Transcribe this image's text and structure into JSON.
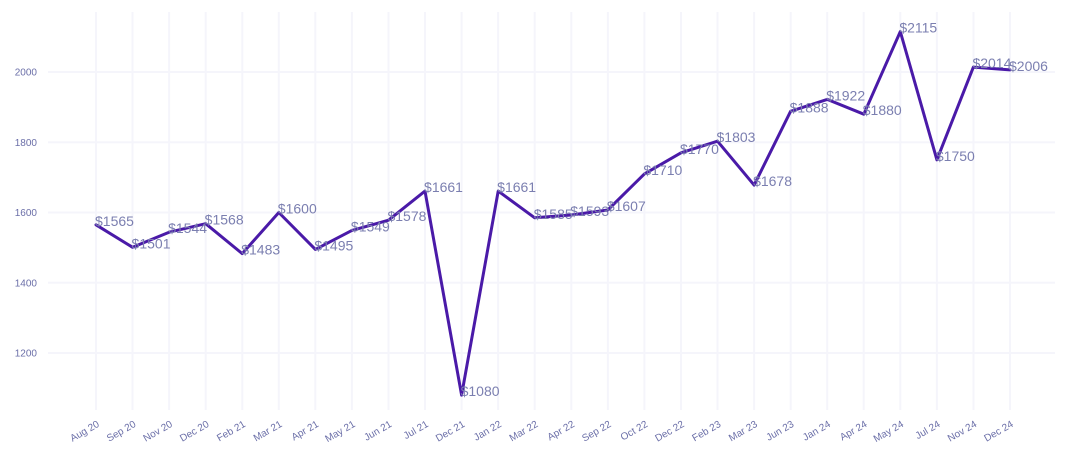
{
  "colors": {
    "line": "#4a1aa8"
  },
  "chart_data": {
    "type": "line",
    "title": "",
    "xlabel": "",
    "ylabel": "",
    "ylim": [
      1050,
      2180
    ],
    "yticks": [
      1200,
      1400,
      1600,
      1800,
      2000
    ],
    "grid": true,
    "categories": [
      "Aug 20",
      "Sep 20",
      "Nov 20",
      "Dec 20",
      "Feb 21",
      "Mar 21",
      "Apr 21",
      "May 21",
      "Jun 21",
      "Jul 21",
      "Dec 21",
      "Jan 22",
      "Mar 22",
      "Apr 22",
      "Sep 22",
      "Oct 22",
      "Dec 22",
      "Feb 23",
      "Mar 23",
      "Jun 23",
      "Jan 24",
      "Apr 24",
      "May 24",
      "Jul 24",
      "Nov 24",
      "Dec 24"
    ],
    "values": [
      1565,
      1501,
      1544,
      1568,
      1483,
      1600,
      1495,
      1549,
      1578,
      1661,
      1080,
      1661,
      1585,
      1593,
      1607,
      1710,
      1770,
      1803,
      1678,
      1888,
      1922,
      1880,
      2115,
      1750,
      2014,
      2006
    ],
    "data_labels": [
      "$1565",
      "$1501",
      "$1544",
      "$1568",
      "$1483",
      "$1600",
      "$1495",
      "$1549",
      "$1578",
      "$1661",
      "$1080",
      "$1661",
      "$1585",
      "$1593",
      "$1607",
      "$1710",
      "$1770",
      "$1803",
      "$1678",
      "$1888",
      "$1922",
      "$1880",
      "$2115",
      "$1750",
      "$2014",
      "$2006"
    ]
  }
}
